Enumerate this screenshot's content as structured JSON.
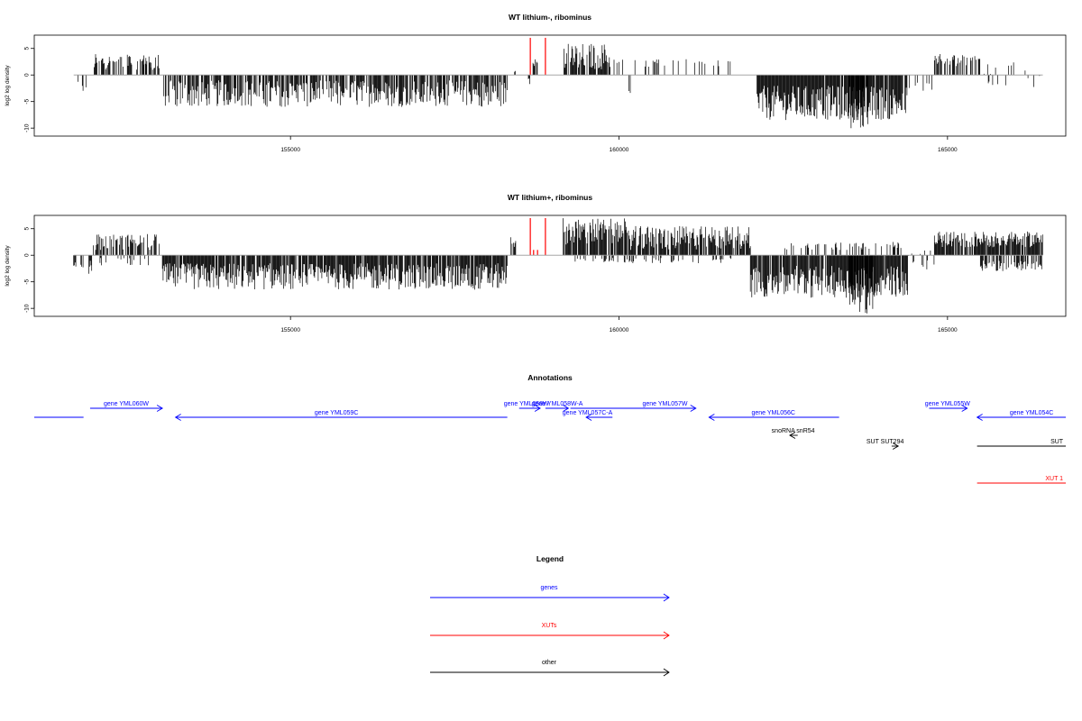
{
  "chart_data": [
    {
      "type": "bar",
      "title": "WT lithium-, ribominus",
      "xlabel": "",
      "ylabel": "log2 log density",
      "xlim": [
        151100,
        166800
      ],
      "ylim": [
        -11.5,
        7.5
      ],
      "xticks": [
        155000,
        160000,
        165000
      ],
      "xtick_labels": [
        "155000",
        "160000",
        "165000"
      ],
      "yticks": [
        5,
        0,
        -5,
        -10
      ],
      "ytick_labels": [
        "5",
        "0",
        "-5",
        "-10"
      ],
      "baseline": {
        "from": 151700,
        "to": 166450
      },
      "highlight_color": "#ff0000",
      "highlight_series": [
        {
          "name": "",
          "x": [
            158650,
            158880
          ],
          "values": [
            7,
            7
          ]
        }
      ],
      "segments": [
        {
          "from": 151700,
          "to": 151980,
          "density": 0.25,
          "min": -3.5,
          "max": -1
        },
        {
          "from": 152000,
          "to": 153000,
          "density": 0.55,
          "min": 1,
          "max": 4
        },
        {
          "from": 152700,
          "to": 153000,
          "density": 0.3,
          "min": 2,
          "max": 4.3
        },
        {
          "from": 153050,
          "to": 158300,
          "density": 0.75,
          "min": -6,
          "max": -1
        },
        {
          "from": 158400,
          "to": 158440,
          "density": 0.5,
          "min": 0.5,
          "max": 1.5
        },
        {
          "from": 158620,
          "to": 158650,
          "density": 0.5,
          "min": -2.5,
          "max": -0.5
        },
        {
          "from": 158690,
          "to": 158760,
          "density": 0.6,
          "min": 1.5,
          "max": 3
        },
        {
          "from": 159150,
          "to": 159870,
          "density": 0.85,
          "min": 1,
          "max": 6
        },
        {
          "from": 159880,
          "to": 161800,
          "density": 0.12,
          "min": 1.5,
          "max": 3
        },
        {
          "from": 160150,
          "to": 160180,
          "density": 0.5,
          "min": -3.5,
          "max": -2.5
        },
        {
          "from": 162100,
          "to": 164400,
          "density": 0.92,
          "min": -8.5,
          "max": -2
        },
        {
          "from": 163500,
          "to": 163800,
          "density": 0.8,
          "min": -10.5,
          "max": -5
        },
        {
          "from": 164400,
          "to": 164800,
          "density": 0.25,
          "min": -3,
          "max": -1
        },
        {
          "from": 164800,
          "to": 165500,
          "density": 0.55,
          "min": 1.5,
          "max": 4
        },
        {
          "from": 165500,
          "to": 166450,
          "density": 0.12,
          "min": -2.5,
          "max": 2.5
        }
      ]
    },
    {
      "type": "bar",
      "title": "WT lithium+, ribominus",
      "xlabel": "",
      "ylabel": "log2 log density",
      "xlim": [
        151100,
        166800
      ],
      "ylim": [
        -11.5,
        7.5
      ],
      "xticks": [
        155000,
        160000,
        165000
      ],
      "xtick_labels": [
        "155000",
        "160000",
        "165000"
      ],
      "yticks": [
        5,
        0,
        -5,
        -10
      ],
      "ytick_labels": [
        "5",
        "0",
        "-5",
        "-10"
      ],
      "baseline": {
        "from": 151700,
        "to": 166450
      },
      "highlight_color": "#ff0000",
      "highlight_series": [
        {
          "name": "",
          "x": [
            158650,
            158880,
            158700,
            158760
          ],
          "values": [
            7,
            7,
            1,
            1
          ]
        }
      ],
      "segments": [
        {
          "from": 151700,
          "to": 151980,
          "density": 0.6,
          "min": -3.5,
          "max": -1
        },
        {
          "from": 152000,
          "to": 153000,
          "density": 0.6,
          "min": 1,
          "max": 4
        },
        {
          "from": 152100,
          "to": 152900,
          "density": 0.2,
          "min": -2,
          "max": -0.5
        },
        {
          "from": 153050,
          "to": 158300,
          "density": 0.9,
          "min": -6.5,
          "max": -1.5
        },
        {
          "from": 158350,
          "to": 158450,
          "density": 0.5,
          "min": 1.5,
          "max": 3.5
        },
        {
          "from": 159150,
          "to": 160100,
          "density": 0.9,
          "min": 2,
          "max": 7
        },
        {
          "from": 160100,
          "to": 162000,
          "density": 0.85,
          "min": 1,
          "max": 5.5
        },
        {
          "from": 159300,
          "to": 161800,
          "density": 0.2,
          "min": -1.5,
          "max": -0.5
        },
        {
          "from": 162000,
          "to": 164400,
          "density": 0.92,
          "min": -8,
          "max": -2
        },
        {
          "from": 163500,
          "to": 163900,
          "density": 0.8,
          "min": -11,
          "max": -5
        },
        {
          "from": 162500,
          "to": 164300,
          "density": 0.25,
          "min": 1,
          "max": 2.5
        },
        {
          "from": 164400,
          "to": 164800,
          "density": 0.3,
          "min": -3,
          "max": 1
        },
        {
          "from": 164800,
          "to": 166450,
          "density": 0.9,
          "min": 1.5,
          "max": 4.5
        },
        {
          "from": 165500,
          "to": 166450,
          "density": 0.6,
          "min": -3,
          "max": -1
        }
      ]
    }
  ],
  "annotations": {
    "title": "Annotations",
    "xlim": [
      151100,
      166800
    ],
    "features": [
      {
        "label": "",
        "kind": "gene",
        "strand": "+",
        "start": 151100,
        "end": 151850,
        "row": 1,
        "label_pos": 151500
      },
      {
        "label": "gene YML060W",
        "kind": "gene",
        "strand": "+",
        "start": 151950,
        "end": 153050,
        "row": 0,
        "label_pos": 152500
      },
      {
        "label": "gene YML059C",
        "kind": "gene",
        "strand": "-",
        "start": 153250,
        "end": 158300,
        "row": 1,
        "label_pos": 155700
      },
      {
        "label": "gene YML058W",
        "kind": "gene",
        "strand": "+",
        "start": 158480,
        "end": 158800,
        "row": 0,
        "label_pos": 158590
      },
      {
        "label": "gene YML058W-A",
        "kind": "gene",
        "strand": "+",
        "start": 158880,
        "end": 159230,
        "row": 0,
        "label_pos": 159060
      },
      {
        "label": "gene YML057C-A",
        "kind": "gene",
        "strand": "-",
        "start": 159500,
        "end": 159900,
        "row": 1,
        "label_pos": 159520
      },
      {
        "label": "gene YML057W",
        "kind": "gene",
        "strand": "+",
        "start": 159260,
        "end": 161170,
        "row": 0,
        "label_pos": 160700
      },
      {
        "label": "gene YML056C",
        "kind": "gene",
        "strand": "-",
        "start": 161370,
        "end": 163350,
        "row": 1,
        "label_pos": 162350
      },
      {
        "label": "gene YML055W",
        "kind": "gene",
        "strand": "+",
        "start": 164720,
        "end": 165300,
        "row": 0,
        "label_pos": 165000
      },
      {
        "label": "gene YML054C",
        "kind": "gene",
        "strand": "-",
        "start": 165450,
        "end": 166800,
        "row": 1,
        "label_pos": 166280
      },
      {
        "label": "snoRNA snR54",
        "kind": "other",
        "strand": "-",
        "start": 162600,
        "end": 162720,
        "row": 2,
        "label_pos": 162650
      },
      {
        "label": "SUT SUT294",
        "kind": "other",
        "strand": "+",
        "start": 164150,
        "end": 164250,
        "row": 3,
        "label_pos": 164050
      },
      {
        "label": "SUT",
        "kind": "other",
        "strand": "+",
        "start": 165450,
        "end": 166800,
        "row": 3,
        "label_pos": 166760
      },
      {
        "label": "XUT 1",
        "kind": "xut",
        "strand": "+",
        "start": 165450,
        "end": 166800,
        "row": 4,
        "label_pos": 166760
      }
    ]
  },
  "legend": {
    "title": "Legend",
    "items": [
      {
        "label": "genes",
        "color": "#0000ff"
      },
      {
        "label": "XUTs",
        "color": "#ff0000"
      },
      {
        "label": "other",
        "color": "#000000"
      }
    ]
  },
  "colors": {
    "gene": "#0000ff",
    "xut": "#ff0000",
    "other": "#000000",
    "bars": "#000000",
    "axis": "#000000",
    "baseline": "#999999"
  }
}
